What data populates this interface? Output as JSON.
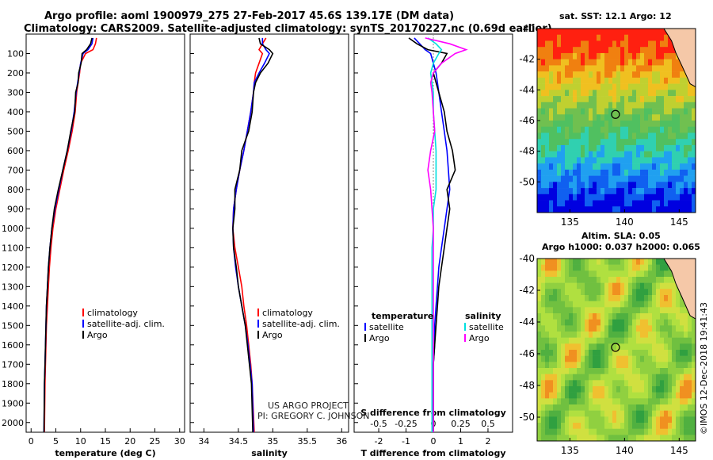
{
  "header": {
    "title_line1": "Argo profile: aoml 1900979_275 27-Feb-2017 45.6S 139.17E (DM data)",
    "title_line2": "Climatology: CARS2009. Satellite-adjusted climatology: synTS_20170227.nc (0.69d earlier)"
  },
  "maps": {
    "sst_title": "sat. SST: 12.1 Argo: 12",
    "sla_title1": "Altim. SLA: 0.05",
    "sla_title2": "Argo h1000: 0.037 h2000: 0.065",
    "colors": {
      "sst_levels": [
        "#0000e0",
        "#1060f0",
        "#20a0f0",
        "#30d0b0",
        "#50c060",
        "#70c050",
        "#c0d030",
        "#f0c020",
        "#f08010",
        "#ff2010"
      ],
      "land": "#f5c8a8",
      "marker": "#000000"
    }
  },
  "credits": {
    "line1": "US ARGO PROJECT",
    "line2": "PI: GREGORY C. JOHNSON",
    "imos": "©IMOS 12-Dec-2018 19:41:43"
  },
  "chart_data": [
    {
      "type": "line",
      "xlabel": "temperature (deg C)",
      "ylabel": "",
      "xlim": [
        -1,
        31
      ],
      "ylim": [
        2050,
        0
      ],
      "xticks": [
        0,
        5,
        10,
        15,
        20,
        25,
        30
      ],
      "yticks": [
        100,
        200,
        300,
        400,
        500,
        600,
        700,
        800,
        900,
        1000,
        1100,
        1200,
        1300,
        1400,
        1500,
        1600,
        1700,
        1800,
        1900,
        2000
      ],
      "legend": [
        "climatology",
        "satellite-adj. clim.",
        "Argo"
      ],
      "series": [
        {
          "name": "climatology",
          "color": "#ff0000",
          "x": [
            13.2,
            13.0,
            12.5,
            11.0,
            10.0,
            9.8,
            9.5,
            9.2,
            8.9,
            8.3,
            7.5,
            6.6,
            5.8,
            5.0,
            4.4,
            4.0,
            3.7,
            3.5,
            3.3,
            3.1,
            3.0,
            2.9,
            2.8,
            2.7
          ],
          "y": [
            20,
            50,
            80,
            100,
            150,
            200,
            250,
            300,
            400,
            500,
            600,
            700,
            800,
            900,
            1000,
            1100,
            1200,
            1300,
            1400,
            1500,
            1600,
            1700,
            1800,
            2050
          ]
        },
        {
          "name": "satellite-adj. clim.",
          "color": "#0000ff",
          "x": [
            12.5,
            12.3,
            11.5,
            10.5,
            10.0,
            9.7,
            9.4,
            9.1,
            8.7,
            8.1,
            7.3,
            6.4,
            5.6,
            4.8,
            4.2,
            3.8,
            3.5,
            3.3,
            3.1,
            3.0,
            2.9,
            2.8,
            2.7,
            2.6
          ],
          "y": [
            20,
            50,
            80,
            100,
            150,
            200,
            250,
            300,
            400,
            500,
            600,
            700,
            800,
            900,
            1000,
            1100,
            1200,
            1300,
            1400,
            1500,
            1600,
            1700,
            1800,
            2050
          ]
        },
        {
          "name": "Argo",
          "color": "#000000",
          "x": [
            12.3,
            12.0,
            11.2,
            10.3,
            10.1,
            9.6,
            9.5,
            9.0,
            8.8,
            8.0,
            7.3,
            6.4,
            5.5,
            4.7,
            4.2,
            3.8,
            3.5,
            3.3,
            3.1,
            3.0,
            2.9,
            2.8,
            2.7,
            2.6
          ],
          "y": [
            20,
            50,
            80,
            100,
            150,
            200,
            250,
            300,
            400,
            500,
            600,
            700,
            800,
            900,
            1000,
            1100,
            1200,
            1300,
            1400,
            1500,
            1600,
            1700,
            1800,
            2050
          ]
        }
      ]
    },
    {
      "type": "line",
      "xlabel": "salinity",
      "xlim": [
        33.8,
        36.1
      ],
      "ylim": [
        2050,
        0
      ],
      "xticks": [
        34,
        34.5,
        35,
        35.5,
        36
      ],
      "legend": [
        "climatology",
        "satellite-adj. clim.",
        "Argo"
      ],
      "series": [
        {
          "name": "climatology",
          "color": "#ff0000",
          "x": [
            34.9,
            34.85,
            34.8,
            34.85,
            34.8,
            34.75,
            34.73,
            34.72,
            34.68,
            34.63,
            34.58,
            34.52,
            34.47,
            34.43,
            34.42,
            34.45,
            34.5,
            34.55,
            34.58,
            34.62,
            34.65,
            34.68,
            34.7,
            34.73
          ],
          "y": [
            20,
            50,
            80,
            100,
            150,
            200,
            250,
            300,
            400,
            500,
            600,
            700,
            800,
            900,
            1000,
            1100,
            1200,
            1300,
            1400,
            1500,
            1600,
            1700,
            1800,
            2050
          ]
        },
        {
          "name": "satellite-adj. clim.",
          "color": "#0000ff",
          "x": [
            34.85,
            34.85,
            34.9,
            34.95,
            34.88,
            34.8,
            34.73,
            34.72,
            34.68,
            34.63,
            34.58,
            34.52,
            34.47,
            34.43,
            34.42,
            34.43,
            34.46,
            34.5,
            34.55,
            34.6,
            34.64,
            34.67,
            34.7,
            34.72
          ],
          "y": [
            20,
            50,
            80,
            100,
            150,
            200,
            250,
            300,
            400,
            500,
            600,
            700,
            800,
            900,
            1000,
            1100,
            1200,
            1300,
            1400,
            1500,
            1600,
            1700,
            1800,
            2050
          ]
        },
        {
          "name": "Argo",
          "color": "#000000",
          "x": [
            34.8,
            34.82,
            34.95,
            35.0,
            34.93,
            34.82,
            34.75,
            34.72,
            34.7,
            34.65,
            34.55,
            34.52,
            34.45,
            34.45,
            34.42,
            34.43,
            34.47,
            34.5,
            34.55,
            34.6,
            34.63,
            34.66,
            34.69,
            34.71
          ],
          "y": [
            20,
            50,
            80,
            100,
            150,
            200,
            250,
            300,
            400,
            500,
            600,
            700,
            800,
            900,
            1000,
            1100,
            1200,
            1300,
            1400,
            1500,
            1600,
            1700,
            1800,
            2050
          ]
        }
      ]
    },
    {
      "type": "line",
      "xlabel": "T difference from climatology",
      "xlabel_top": "S difference from climatology",
      "xlim": [
        -2.9,
        2.9
      ],
      "ylim": [
        2050,
        0
      ],
      "xticks": [
        -2,
        -1,
        0,
        1,
        2
      ],
      "xticks_top": [
        "-0.5",
        "-0.25",
        "0",
        "0.25",
        "0.5"
      ],
      "legend_temperature": "temperature",
      "legend_salinity": "salinity",
      "legend": [
        "satellite",
        "Argo",
        "satellite",
        "Argo"
      ],
      "series": [
        {
          "name": "satellite",
          "color": "#0000ff",
          "x": [
            -0.7,
            -0.5,
            -0.3,
            -0.1,
            0.0,
            0.1,
            0.15,
            0.2,
            0.3,
            0.4,
            0.5,
            0.55,
            0.6,
            0.5,
            0.4,
            0.3,
            0.2,
            0.15,
            0.1,
            0.05,
            0.05,
            0.0,
            0.0,
            0.0
          ],
          "y": [
            20,
            50,
            80,
            100,
            150,
            200,
            250,
            300,
            400,
            500,
            600,
            700,
            800,
            900,
            1000,
            1100,
            1200,
            1300,
            1400,
            1500,
            1600,
            1700,
            1800,
            2050
          ]
        },
        {
          "name": "Argo",
          "color": "#000000",
          "x": [
            -0.9,
            -0.6,
            -0.2,
            0.5,
            0.3,
            0.0,
            0.1,
            0.2,
            0.4,
            0.5,
            0.7,
            0.8,
            0.5,
            0.6,
            0.5,
            0.4,
            0.3,
            0.2,
            0.15,
            0.1,
            0.05,
            0.0,
            0.0,
            0.0
          ],
          "y": [
            20,
            50,
            80,
            100,
            150,
            200,
            250,
            300,
            400,
            500,
            600,
            700,
            800,
            900,
            1000,
            1100,
            1200,
            1300,
            1400,
            1500,
            1600,
            1700,
            1800,
            2050
          ]
        },
        {
          "name": "satellite",
          "color": "#00e0e0",
          "x": [
            -0.2,
            0.1,
            0.3,
            0.2,
            0.0,
            -0.1,
            -0.05,
            0.0,
            0.0,
            0.05,
            0.1,
            0.1,
            0.1,
            0.0,
            0.0,
            -0.05,
            -0.05,
            -0.05,
            -0.05,
            -0.05,
            -0.05,
            -0.05,
            -0.05,
            -0.05
          ],
          "y": [
            20,
            50,
            80,
            100,
            150,
            200,
            250,
            300,
            400,
            500,
            600,
            700,
            800,
            900,
            1000,
            1100,
            1200,
            1300,
            1400,
            1500,
            1600,
            1700,
            1800,
            2050
          ]
        },
        {
          "name": "Argo",
          "color": "#ff00ff",
          "x": [
            -0.3,
            0.6,
            1.2,
            0.8,
            0.3,
            0.0,
            -0.1,
            -0.05,
            0.0,
            0.05,
            -0.1,
            -0.2,
            -0.1,
            -0.05,
            0.0,
            0.0,
            0.0,
            0.0,
            0.0,
            0.0,
            0.0,
            0.0,
            0.0,
            0.0
          ],
          "y": [
            20,
            50,
            80,
            100,
            150,
            200,
            250,
            300,
            400,
            500,
            600,
            700,
            800,
            900,
            1000,
            1100,
            1200,
            1300,
            1400,
            1500,
            1600,
            1700,
            1800,
            2050
          ]
        }
      ]
    },
    {
      "type": "heatmap",
      "title": "sat. SST: 12.1 Argo: 12",
      "xlim": [
        132,
        146.5
      ],
      "ylim": [
        -52,
        -40
      ],
      "xticks": [
        135,
        140,
        145
      ],
      "yticks": [
        -40,
        -42,
        -44,
        -46,
        -48,
        -50
      ],
      "marker": {
        "lon": 139.17,
        "lat": -45.6
      }
    },
    {
      "type": "heatmap",
      "title": "Altim. SLA: 0.05",
      "xlim": [
        132,
        146.5
      ],
      "ylim": [
        -51.5,
        -40
      ],
      "xticks": [
        135,
        140,
        145
      ],
      "yticks": [
        -40,
        -42,
        -44,
        -46,
        -48,
        -50
      ],
      "marker": {
        "lon": 139.17,
        "lat": -45.6
      }
    }
  ]
}
